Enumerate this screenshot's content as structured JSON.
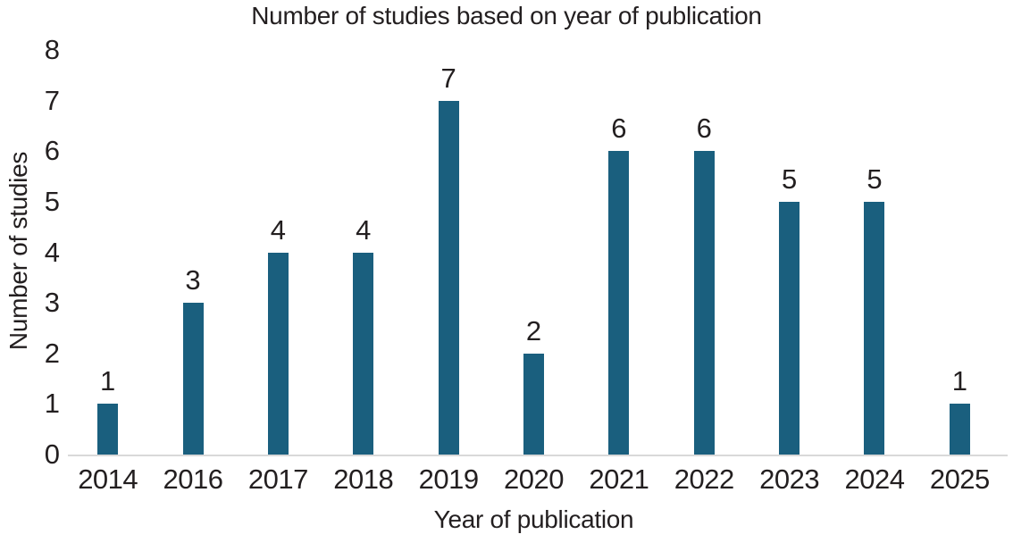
{
  "chart_data": {
    "type": "bar",
    "title": "Number of studies based on year of publication",
    "xlabel": "Year of publication",
    "ylabel": "Number of studies",
    "categories": [
      "2014",
      "2016",
      "2017",
      "2018",
      "2019",
      "2020",
      "2021",
      "2022",
      "2023",
      "2024",
      "2025"
    ],
    "values": [
      1,
      3,
      4,
      4,
      7,
      2,
      6,
      6,
      5,
      5,
      1
    ],
    "ylim": [
      0,
      8
    ],
    "ytick_step": 1,
    "yticks": [
      "0",
      "1",
      "2",
      "3",
      "4",
      "5",
      "6",
      "7",
      "8"
    ],
    "grid": false,
    "legend": "none",
    "data_labels": true
  },
  "colors": {
    "bar": "#1A5F7E",
    "text": "#231F20",
    "axis_line": "#D9D9D9"
  }
}
